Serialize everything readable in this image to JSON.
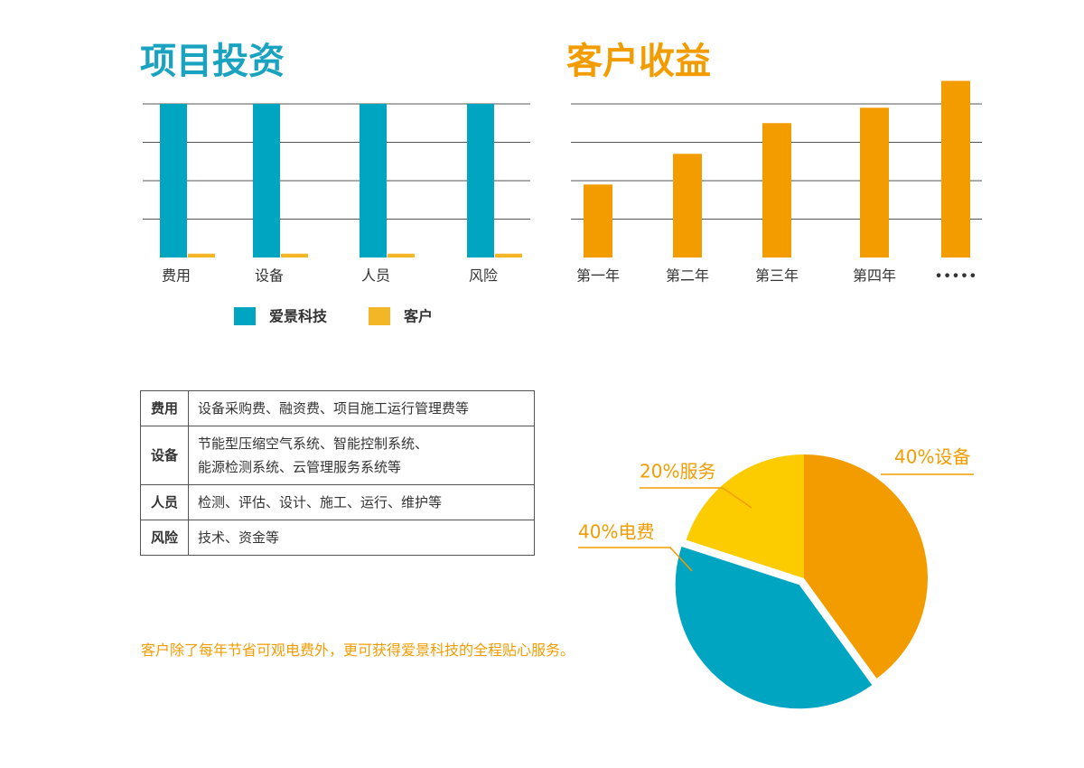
{
  "chart_data": [
    {
      "type": "bar",
      "title": "项目投资",
      "title_color": "#1aa3c0",
      "categories": [
        "费用",
        "设备",
        "人员",
        "风险"
      ],
      "series": [
        {
          "name": "爱景科技",
          "color": "#00a5c2",
          "values": [
            4,
            4,
            4,
            4
          ]
        },
        {
          "name": "客户",
          "color": "#f2b627",
          "values": [
            0.1,
            0.1,
            0.1,
            0.1
          ]
        }
      ],
      "ylim": [
        0,
        4
      ],
      "yticks": [
        1,
        2,
        3,
        4
      ],
      "grid": true,
      "legend": "bottom"
    },
    {
      "type": "bar",
      "title": "客户收益",
      "title_color": "#f39c00",
      "categories": [
        "第一年",
        "第二年",
        "第三年",
        "第四年",
        "•••••"
      ],
      "values": [
        1.9,
        2.7,
        3.5,
        3.9,
        4.6
      ],
      "color": "#f39c00",
      "ylim": [
        0,
        5
      ],
      "yticks": [
        1,
        2,
        3,
        4
      ],
      "grid": true
    },
    {
      "type": "pie",
      "values": [
        40,
        40,
        20
      ],
      "value_labels": [
        "40%设备",
        "40%电费",
        "20%服务"
      ],
      "colors": [
        "#f39c00",
        "#00a5c2",
        "#fccb00"
      ]
    }
  ],
  "table": {
    "rows": [
      [
        "费用",
        "设备采购费、融资费、项目施工运行管理费等"
      ],
      [
        "设备",
        "节能型压缩空气系统、智能控制系统、\n能源检测系统、云管理服务系统等"
      ],
      [
        "人员",
        "检测、评估、设计、施工、运行、维护等"
      ],
      [
        "风险",
        "技术、资金等"
      ]
    ]
  },
  "note": "客户除了每年节省可观电费外，更可获得爱景科技的全程贴心服务。"
}
